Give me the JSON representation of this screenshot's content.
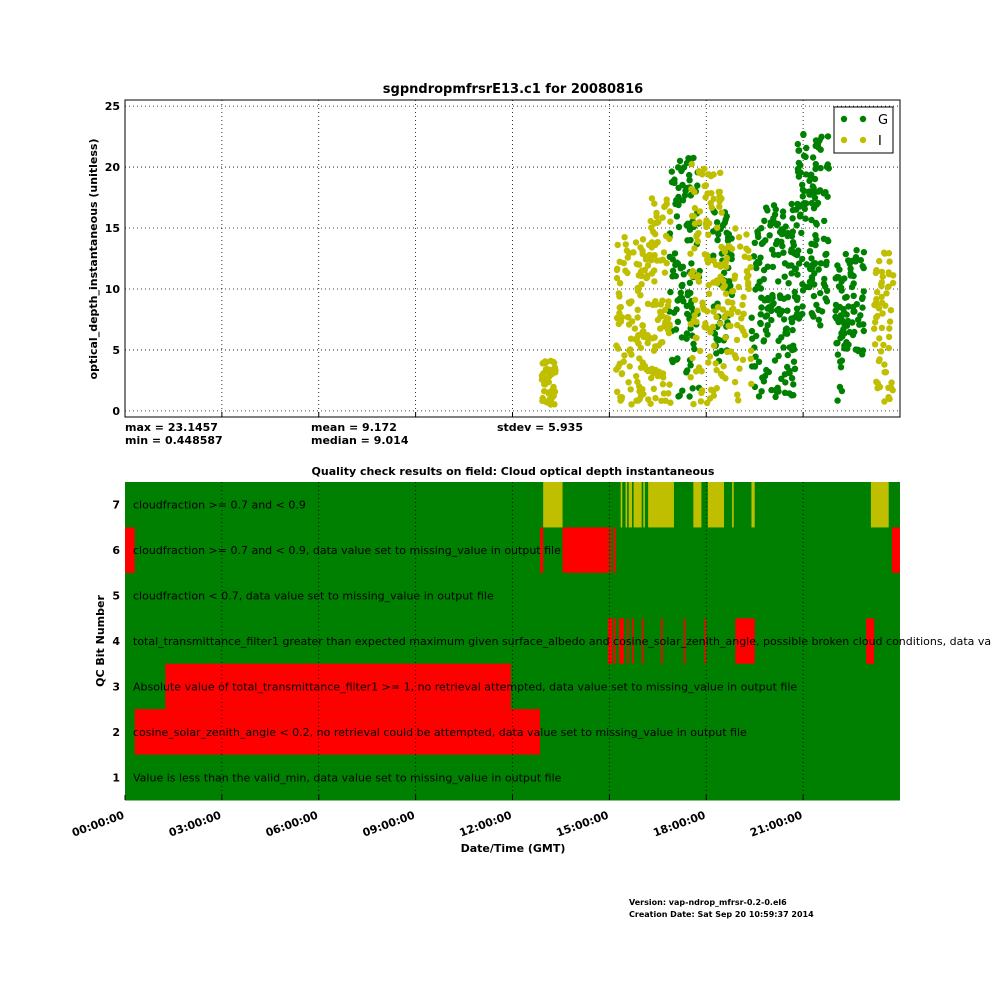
{
  "colors": {
    "green": "#008000",
    "yellow": "#bfbf00",
    "red": "#ff0000",
    "black": "#000000"
  },
  "chart_data": [
    {
      "type": "scatter",
      "title": "sgpndropmfrsrE13.c1 for 20080816",
      "xlabel": "",
      "ylabel": "optical_depth_instantaneous (unitless)",
      "xlim": [
        0,
        24
      ],
      "ylim": [
        -0.5,
        25.5
      ],
      "yticks": [
        0,
        5,
        10,
        15,
        20,
        25
      ],
      "xgrid_hours": [
        0,
        3,
        6,
        9,
        12,
        15,
        18,
        21
      ],
      "grid": true,
      "legend_position": "top-right",
      "series": [
        {
          "name": "G",
          "color": "#008000",
          "segments": [
            {
              "x_range": [
                16.85,
                17.8
              ],
              "y_range": [
                1.0,
                20.8
              ],
              "n": 120
            },
            {
              "x_range": [
                18.2,
                18.8
              ],
              "y_range": [
                4.0,
                16.5
              ],
              "n": 60
            },
            {
              "x_range": [
                19.4,
                20.8
              ],
              "y_range": [
                1.0,
                17.0
              ],
              "n": 170
            },
            {
              "x_range": [
                20.8,
                21.8
              ],
              "y_range": [
                7.0,
                23.1
              ],
              "n": 130
            },
            {
              "x_range": [
                22.0,
                22.3
              ],
              "y_range": [
                0.8,
                12.5
              ],
              "n": 40
            },
            {
              "x_range": [
                22.3,
                22.9
              ],
              "y_range": [
                4.0,
                13.5
              ],
              "n": 50
            }
          ]
        },
        {
          "name": "I",
          "color": "#bfbf00",
          "segments": [
            {
              "x_range": [
                12.9,
                13.35
              ],
              "y_range": [
                0.5,
                4.2
              ],
              "n": 45
            },
            {
              "x_range": [
                15.2,
                16.2
              ],
              "y_range": [
                0.5,
                14.3
              ],
              "n": 110
            },
            {
              "x_range": [
                16.2,
                16.9
              ],
              "y_range": [
                0.5,
                17.5
              ],
              "n": 90
            },
            {
              "x_range": [
                17.5,
                18.5
              ],
              "y_range": [
                0.5,
                20.5
              ],
              "n": 110
            },
            {
              "x_range": [
                18.5,
                19.4
              ],
              "y_range": [
                0.5,
                15.0
              ],
              "n": 70
            },
            {
              "x_range": [
                23.2,
                23.8
              ],
              "y_range": [
                0.5,
                13.0
              ],
              "n": 60
            }
          ]
        }
      ],
      "stats": {
        "max": "max = 23.1457",
        "min": "min = 0.448587",
        "mean": "mean = 9.172",
        "median": "median = 9.014",
        "stdev": "stdev = 5.935"
      }
    },
    {
      "type": "heatmap",
      "title": "Quality check results on field: Cloud optical depth instantaneous",
      "xlabel": "Date/Time (GMT)",
      "ylabel": "QC Bit Number",
      "xlim": [
        0,
        24
      ],
      "xtick_labels": [
        "00:00:00",
        "03:00:00",
        "06:00:00",
        "09:00:00",
        "12:00:00",
        "15:00:00",
        "18:00:00",
        "21:00:00"
      ],
      "rows": [
        {
          "bit": "7",
          "description": "cloudfraction >= 0.7 and < 0.9",
          "flag_color": "#bfbf00",
          "flagged_hours": [
            [
              12.95,
              13.55
            ],
            [
              15.35,
              15.4
            ],
            [
              15.5,
              15.55
            ],
            [
              15.6,
              15.7
            ],
            [
              15.75,
              16.0
            ],
            [
              16.05,
              16.1
            ],
            [
              16.2,
              17.0
            ],
            [
              17.6,
              17.85
            ],
            [
              18.05,
              18.55
            ],
            [
              18.8,
              18.85
            ],
            [
              19.4,
              19.5
            ],
            [
              23.1,
              23.65
            ]
          ]
        },
        {
          "bit": "6",
          "description": "cloudfraction >= 0.7 and < 0.9, data value set to missing_value in output file",
          "flag_color": "#ff0000",
          "flagged_hours": [
            [
              0,
              0.3
            ],
            [
              12.85,
              12.95
            ],
            [
              13.55,
              14.95
            ],
            [
              14.95,
              15.0
            ],
            [
              15.05,
              15.1
            ],
            [
              15.15,
              15.2
            ],
            [
              23.75,
              24
            ]
          ]
        },
        {
          "bit": "5",
          "description": "cloudfraction < 0.7, data value set to missing_value in output file",
          "flag_color": "#ff0000",
          "flagged_hours": []
        },
        {
          "bit": "4",
          "description": "total_transmittance_filter1 greater than expected maximum given surface_albedo and cosine_solar_zenith_angle, possible broken cloud conditions, data va",
          "flag_color": "#ff0000",
          "flagged_hours": [
            [
              14.95,
              15.1
            ],
            [
              15.15,
              15.2
            ],
            [
              15.3,
              15.45
            ],
            [
              15.55,
              15.6
            ],
            [
              15.7,
              15.75
            ],
            [
              16.0,
              16.05
            ],
            [
              16.6,
              16.65
            ],
            [
              17.3,
              17.35
            ],
            [
              17.95,
              18.0
            ],
            [
              18.9,
              19.5
            ],
            [
              22.95,
              23.2
            ]
          ]
        },
        {
          "bit": "3",
          "description": "Absolute value of total_transmittance_filter1 >= 1, no retrieval attempted, data value set to missing_value in output file",
          "flag_color": "#ff0000",
          "flagged_hours": [
            [
              1.25,
              11.95
            ]
          ]
        },
        {
          "bit": "2",
          "description": "cosine_solar_zenith_angle < 0.2, no retrieval could be attempted, data value set to missing_value in output file",
          "flag_color": "#ff0000",
          "flagged_hours": [
            [
              0.3,
              12.85
            ]
          ]
        },
        {
          "bit": "1",
          "description": "Value is less than the valid_min, data value set to missing_value in output file",
          "flag_color": "#ff0000",
          "flagged_hours": []
        }
      ]
    }
  ],
  "footer": {
    "version": "Version: vap-ndrop_mfrsr-0.2-0.el6",
    "creation_date": "Creation Date: Sat Sep 20 10:59:37 2014"
  }
}
